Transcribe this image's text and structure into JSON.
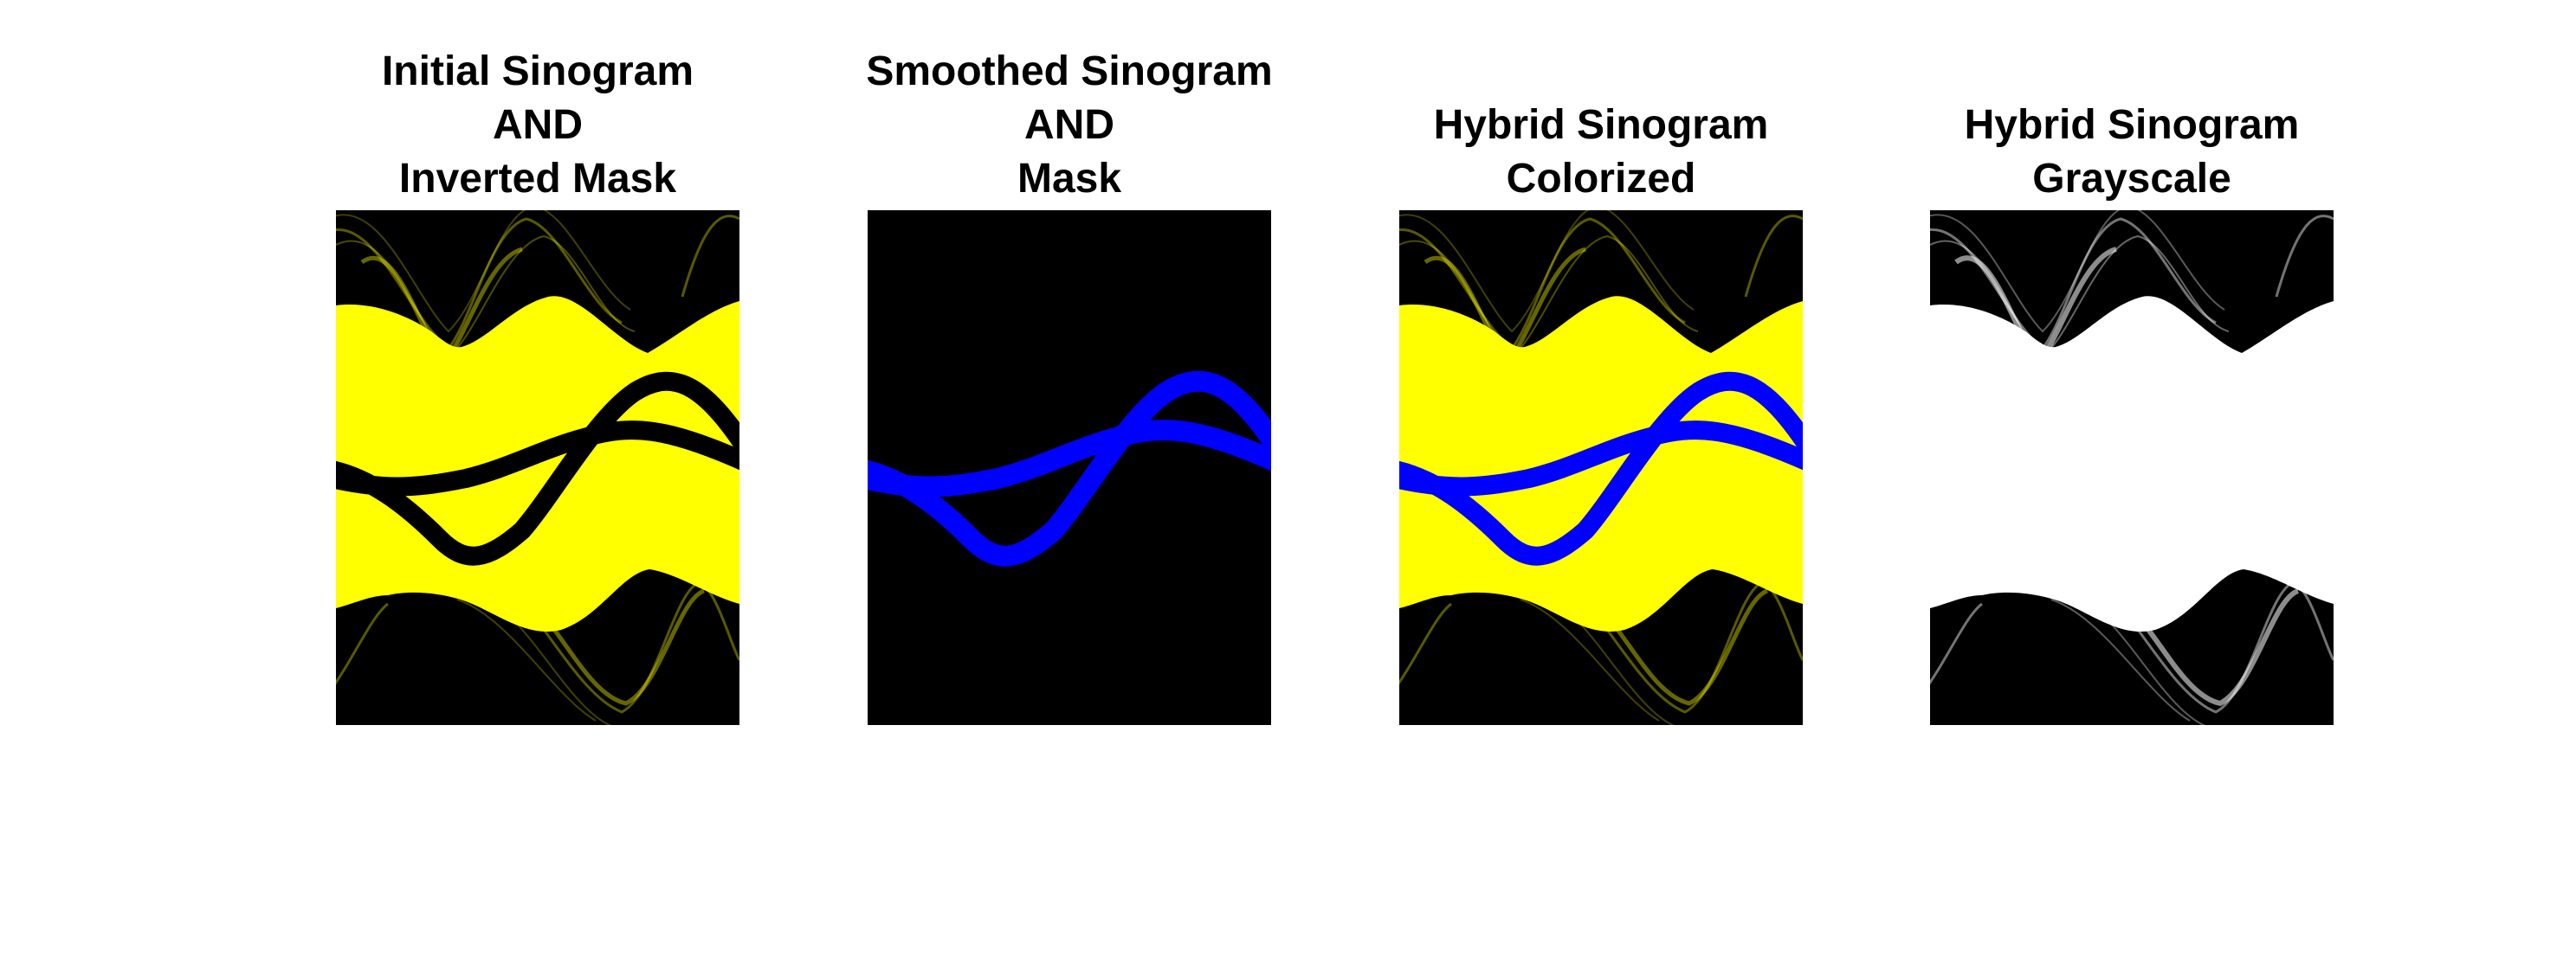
{
  "panels": [
    {
      "title_lines": [
        "Initial Sinogram",
        "AND",
        "Inverted Mask"
      ]
    },
    {
      "title_lines": [
        "Smoothed Sinogram",
        "AND",
        "Mask"
      ]
    },
    {
      "title_lines": [
        "Hybrid Sinogram",
        "Colorized"
      ]
    },
    {
      "title_lines": [
        "Hybrid Sinogram",
        "Grayscale"
      ]
    }
  ],
  "colors": {
    "sinogram_yellow": "#ffff00",
    "mask_blue": "#0000ff",
    "background_black": "#000000",
    "gray_white": "#ffffff"
  }
}
